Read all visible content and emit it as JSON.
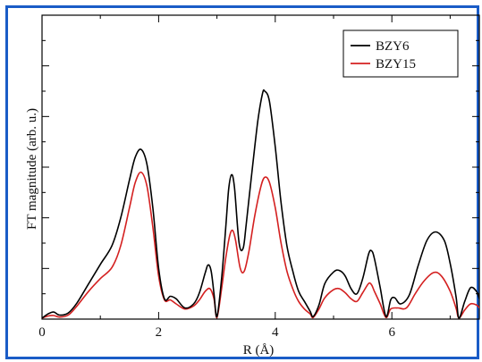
{
  "chart_data": {
    "type": "line",
    "title": "",
    "xlabel": "R (Å)",
    "ylabel": "FT magnitude (arb. u.)",
    "xlim": [
      0,
      7.5
    ],
    "ylim": [
      0,
      6
    ],
    "x_ticks": [
      "0",
      "2",
      "4",
      "6"
    ],
    "y_tick_labels_shown": false,
    "grid": false,
    "legend_position": "top-right",
    "series": [
      {
        "name": "BZY6",
        "color": "#000000",
        "points": [
          [
            0.0,
            0.02
          ],
          [
            0.1,
            0.1
          ],
          [
            0.2,
            0.14
          ],
          [
            0.3,
            0.08
          ],
          [
            0.45,
            0.12
          ],
          [
            0.6,
            0.32
          ],
          [
            0.8,
            0.7
          ],
          [
            1.0,
            1.08
          ],
          [
            1.2,
            1.45
          ],
          [
            1.35,
            2.0
          ],
          [
            1.5,
            2.75
          ],
          [
            1.6,
            3.2
          ],
          [
            1.7,
            3.35
          ],
          [
            1.8,
            3.05
          ],
          [
            1.9,
            2.2
          ],
          [
            2.0,
            1.0
          ],
          [
            2.1,
            0.4
          ],
          [
            2.2,
            0.45
          ],
          [
            2.3,
            0.4
          ],
          [
            2.45,
            0.22
          ],
          [
            2.6,
            0.3
          ],
          [
            2.7,
            0.52
          ],
          [
            2.8,
            0.92
          ],
          [
            2.85,
            1.07
          ],
          [
            2.9,
            0.95
          ],
          [
            2.95,
            0.5
          ],
          [
            3.0,
            0.05
          ],
          [
            3.08,
            0.8
          ],
          [
            3.15,
            1.8
          ],
          [
            3.2,
            2.55
          ],
          [
            3.25,
            2.85
          ],
          [
            3.3,
            2.6
          ],
          [
            3.38,
            1.5
          ],
          [
            3.45,
            1.4
          ],
          [
            3.5,
            1.85
          ],
          [
            3.6,
            2.9
          ],
          [
            3.7,
            3.9
          ],
          [
            3.78,
            4.45
          ],
          [
            3.82,
            4.5
          ],
          [
            3.9,
            4.3
          ],
          [
            4.0,
            3.4
          ],
          [
            4.1,
            2.3
          ],
          [
            4.2,
            1.45
          ],
          [
            4.3,
            0.95
          ],
          [
            4.4,
            0.55
          ],
          [
            4.5,
            0.35
          ],
          [
            4.6,
            0.15
          ],
          [
            4.65,
            0.05
          ],
          [
            4.75,
            0.28
          ],
          [
            4.85,
            0.7
          ],
          [
            5.0,
            0.93
          ],
          [
            5.1,
            0.96
          ],
          [
            5.2,
            0.85
          ],
          [
            5.3,
            0.6
          ],
          [
            5.4,
            0.5
          ],
          [
            5.5,
            0.8
          ],
          [
            5.6,
            1.28
          ],
          [
            5.65,
            1.35
          ],
          [
            5.7,
            1.2
          ],
          [
            5.8,
            0.62
          ],
          [
            5.9,
            0.05
          ],
          [
            5.98,
            0.38
          ],
          [
            6.05,
            0.42
          ],
          [
            6.15,
            0.3
          ],
          [
            6.3,
            0.48
          ],
          [
            6.45,
            1.05
          ],
          [
            6.6,
            1.55
          ],
          [
            6.75,
            1.72
          ],
          [
            6.9,
            1.55
          ],
          [
            7.0,
            1.1
          ],
          [
            7.1,
            0.45
          ],
          [
            7.15,
            0.02
          ],
          [
            7.25,
            0.35
          ],
          [
            7.35,
            0.62
          ],
          [
            7.45,
            0.55
          ],
          [
            7.5,
            0.4
          ]
        ]
      },
      {
        "name": "BZY15",
        "color": "#d42020",
        "points": [
          [
            0.0,
            0.02
          ],
          [
            0.1,
            0.06
          ],
          [
            0.2,
            0.07
          ],
          [
            0.3,
            0.04
          ],
          [
            0.45,
            0.08
          ],
          [
            0.6,
            0.26
          ],
          [
            0.8,
            0.55
          ],
          [
            1.0,
            0.8
          ],
          [
            1.2,
            1.02
          ],
          [
            1.35,
            1.45
          ],
          [
            1.5,
            2.2
          ],
          [
            1.6,
            2.7
          ],
          [
            1.7,
            2.9
          ],
          [
            1.8,
            2.62
          ],
          [
            1.9,
            1.82
          ],
          [
            2.0,
            0.85
          ],
          [
            2.1,
            0.38
          ],
          [
            2.2,
            0.38
          ],
          [
            2.3,
            0.3
          ],
          [
            2.45,
            0.2
          ],
          [
            2.6,
            0.26
          ],
          [
            2.7,
            0.38
          ],
          [
            2.8,
            0.55
          ],
          [
            2.88,
            0.6
          ],
          [
            2.95,
            0.4
          ],
          [
            3.0,
            0.03
          ],
          [
            3.08,
            0.6
          ],
          [
            3.15,
            1.2
          ],
          [
            3.22,
            1.65
          ],
          [
            3.27,
            1.75
          ],
          [
            3.32,
            1.55
          ],
          [
            3.4,
            1.0
          ],
          [
            3.47,
            0.95
          ],
          [
            3.55,
            1.35
          ],
          [
            3.65,
            2.05
          ],
          [
            3.75,
            2.6
          ],
          [
            3.82,
            2.8
          ],
          [
            3.9,
            2.7
          ],
          [
            4.0,
            2.2
          ],
          [
            4.1,
            1.5
          ],
          [
            4.2,
            0.95
          ],
          [
            4.3,
            0.6
          ],
          [
            4.4,
            0.35
          ],
          [
            4.5,
            0.2
          ],
          [
            4.6,
            0.1
          ],
          [
            4.65,
            0.03
          ],
          [
            4.75,
            0.2
          ],
          [
            4.85,
            0.42
          ],
          [
            5.0,
            0.58
          ],
          [
            5.1,
            0.6
          ],
          [
            5.2,
            0.52
          ],
          [
            5.3,
            0.4
          ],
          [
            5.4,
            0.35
          ],
          [
            5.5,
            0.52
          ],
          [
            5.6,
            0.7
          ],
          [
            5.65,
            0.68
          ],
          [
            5.7,
            0.55
          ],
          [
            5.8,
            0.3
          ],
          [
            5.9,
            0.03
          ],
          [
            5.98,
            0.2
          ],
          [
            6.1,
            0.22
          ],
          [
            6.25,
            0.22
          ],
          [
            6.4,
            0.5
          ],
          [
            6.55,
            0.75
          ],
          [
            6.72,
            0.92
          ],
          [
            6.85,
            0.85
          ],
          [
            7.0,
            0.55
          ],
          [
            7.1,
            0.22
          ],
          [
            7.15,
            0.02
          ],
          [
            7.25,
            0.18
          ],
          [
            7.35,
            0.3
          ],
          [
            7.45,
            0.28
          ],
          [
            7.5,
            0.22
          ]
        ]
      }
    ]
  }
}
